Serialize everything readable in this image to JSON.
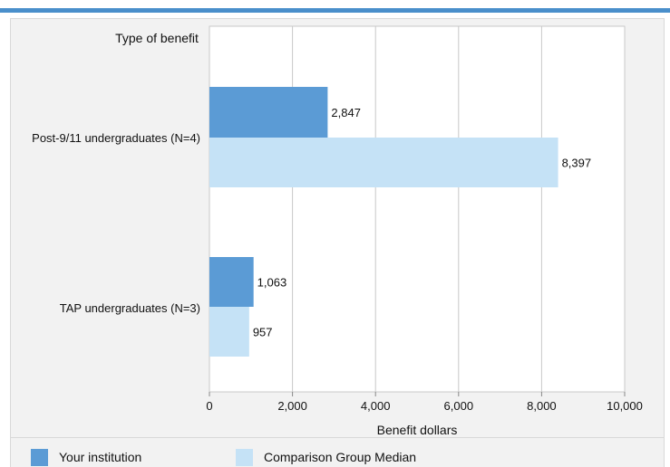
{
  "chart_data": {
    "type": "bar",
    "orientation": "horizontal",
    "ytitle": "Type of benefit",
    "xlabel": "Benefit dollars",
    "xlim": [
      0,
      10000
    ],
    "xticks": [
      0,
      2000,
      4000,
      6000,
      8000,
      10000
    ],
    "xtick_labels": [
      "0",
      "2,000",
      "4,000",
      "6,000",
      "8,000",
      "10,000"
    ],
    "grid": true,
    "legend_position": "bottom",
    "categories": [
      "Post-9/11 undergraduates (N=4)",
      "TAP undergraduates (N=3)"
    ],
    "series": [
      {
        "name": "Your institution",
        "color": "#5b9bd5",
        "values": [
          2847,
          1063
        ],
        "labels": [
          "2,847",
          "1,063"
        ]
      },
      {
        "name": "Comparison Group Median",
        "color": "#c5e2f6",
        "values": [
          8397,
          957
        ],
        "labels": [
          "8,397",
          "957"
        ]
      }
    ]
  },
  "colors": {
    "accent": "#4a8fcb",
    "panel_bg": "#f2f2f2",
    "plot_bg": "#ffffff",
    "grid": "#c8c8c8"
  }
}
